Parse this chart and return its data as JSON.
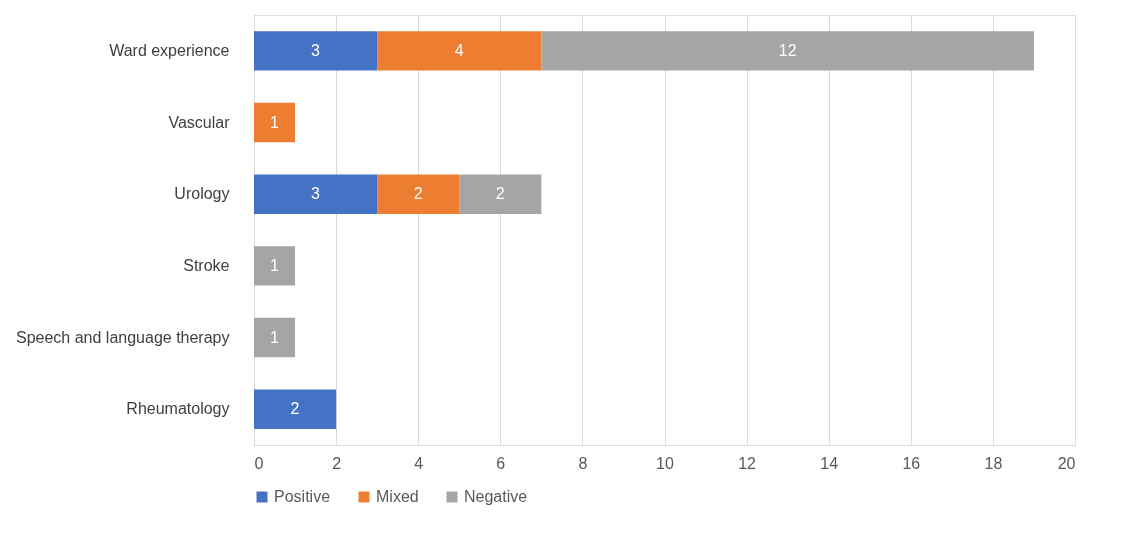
{
  "chart_data": {
    "type": "bar",
    "orientation": "horizontal",
    "stacked": true,
    "categories": [
      "Ward experience",
      "Vascular",
      "Urology",
      "Stroke",
      "Speech and language therapy",
      "Rheumatology"
    ],
    "series": [
      {
        "name": "Positive",
        "color": "#4472c4",
        "values": [
          3,
          null,
          3,
          null,
          null,
          2
        ]
      },
      {
        "name": "Mixed",
        "color": "#ed7d31",
        "values": [
          4,
          1,
          2,
          null,
          null,
          null
        ]
      },
      {
        "name": "Negative",
        "color": "#a5a5a5",
        "values": [
          12,
          null,
          2,
          1,
          1,
          null
        ]
      }
    ],
    "xlim": [
      0,
      20
    ],
    "xticks": [
      0,
      2,
      4,
      6,
      8,
      10,
      12,
      14,
      16,
      18,
      20
    ],
    "grid": "x",
    "legend": "bottom",
    "data_labels": true
  }
}
